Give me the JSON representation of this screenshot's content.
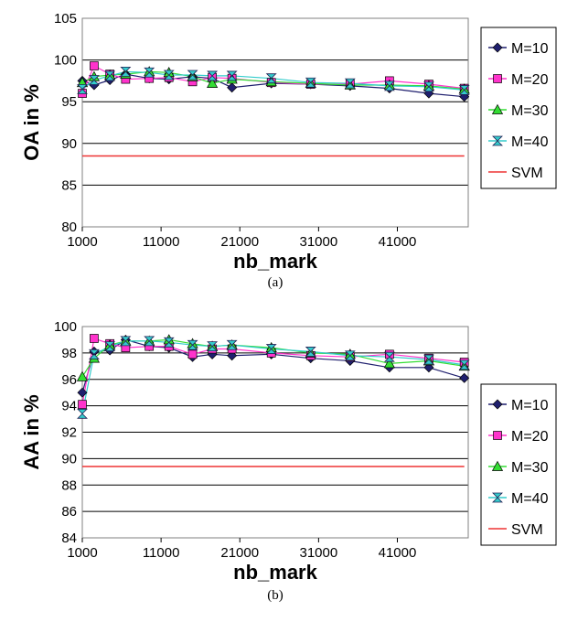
{
  "chart_data": [
    {
      "type": "line",
      "panel_label": "(a)",
      "xlabel": "nb_mark",
      "ylabel": "OA in %",
      "xlim": [
        1000,
        50000
      ],
      "ylim": [
        80,
        105
      ],
      "yticks": [
        80,
        85,
        90,
        95,
        100,
        105
      ],
      "xticks": [
        1000,
        11000,
        21000,
        31000,
        41000
      ],
      "grid": "horizontal",
      "legend_position": "right",
      "x": [
        1000,
        2500,
        4500,
        6500,
        9500,
        12000,
        15000,
        17500,
        20000,
        25000,
        30000,
        35000,
        40000,
        45000,
        49500
      ],
      "series": [
        {
          "name": "M=10",
          "color": "#1f1f6e",
          "marker": "diamond",
          "values": [
            97.5,
            97.0,
            97.6,
            98.3,
            97.8,
            97.7,
            98.0,
            97.8,
            96.7,
            97.2,
            97.1,
            96.9,
            96.6,
            96.0,
            95.6
          ]
        },
        {
          "name": "M=20",
          "color": "#ff33cc",
          "marker": "square",
          "values": [
            96.0,
            99.3,
            98.3,
            97.7,
            97.8,
            97.9,
            97.4,
            97.9,
            97.8,
            97.3,
            97.1,
            97.1,
            97.5,
            97.1,
            96.6
          ]
        },
        {
          "name": "M=30",
          "color": "#33dd33",
          "marker": "triangle",
          "values": [
            97.3,
            98.0,
            98.2,
            98.3,
            98.6,
            98.5,
            98.0,
            97.2,
            97.7,
            97.4,
            97.2,
            97.0,
            97.0,
            96.9,
            96.5
          ]
        },
        {
          "name": "M=40",
          "color": "#33cccc",
          "marker": "bowtie",
          "values": [
            96.5,
            97.6,
            98.1,
            98.6,
            98.5,
            98.2,
            98.2,
            98.1,
            98.1,
            97.8,
            97.3,
            97.2,
            96.9,
            96.8,
            96.4
          ]
        },
        {
          "name": "SVM",
          "color": "#ee3333",
          "marker": "none",
          "values": [
            88.5,
            88.5,
            88.5,
            88.5,
            88.5,
            88.5,
            88.5,
            88.5,
            88.5,
            88.5,
            88.5,
            88.5,
            88.5,
            88.5,
            88.5
          ]
        }
      ]
    },
    {
      "type": "line",
      "panel_label": "(b)",
      "xlabel": "nb_mark",
      "ylabel": "AA in %",
      "xlim": [
        1000,
        50000
      ],
      "ylim": [
        84,
        100
      ],
      "yticks": [
        84,
        86,
        88,
        90,
        92,
        94,
        96,
        98,
        100
      ],
      "xticks": [
        1000,
        11000,
        21000,
        31000,
        41000
      ],
      "grid": "horizontal",
      "legend_position": "right",
      "x": [
        1000,
        2500,
        4500,
        6500,
        9500,
        12000,
        15000,
        17500,
        20000,
        25000,
        30000,
        35000,
        40000,
        45000,
        49500
      ],
      "series": [
        {
          "name": "M=10",
          "color": "#1f1f6e",
          "marker": "diamond",
          "values": [
            95.0,
            98.1,
            98.2,
            99.0,
            98.5,
            98.4,
            97.7,
            97.9,
            97.8,
            97.9,
            97.6,
            97.4,
            96.9,
            96.9,
            96.1
          ]
        },
        {
          "name": "M=20",
          "color": "#ff33cc",
          "marker": "square",
          "values": [
            94.1,
            99.1,
            98.7,
            98.4,
            98.5,
            98.5,
            97.9,
            98.3,
            98.3,
            98.0,
            97.8,
            97.7,
            97.9,
            97.6,
            97.3
          ]
        },
        {
          "name": "M=30",
          "color": "#33dd33",
          "marker": "triangle",
          "values": [
            96.2,
            97.6,
            98.6,
            98.9,
            98.9,
            99.0,
            98.7,
            98.5,
            98.6,
            98.4,
            98.0,
            97.9,
            97.2,
            97.4,
            97.0
          ]
        },
        {
          "name": "M=40",
          "color": "#33cccc",
          "marker": "bowtie",
          "values": [
            93.4,
            97.9,
            98.5,
            98.9,
            98.9,
            98.8,
            98.6,
            98.5,
            98.6,
            98.3,
            98.1,
            97.8,
            97.7,
            97.5,
            97.1
          ]
        },
        {
          "name": "SVM",
          "color": "#ee3333",
          "marker": "none",
          "values": [
            89.4,
            89.4,
            89.4,
            89.4,
            89.4,
            89.4,
            89.4,
            89.4,
            89.4,
            89.4,
            89.4,
            89.4,
            89.4,
            89.4,
            89.4
          ]
        }
      ]
    }
  ]
}
